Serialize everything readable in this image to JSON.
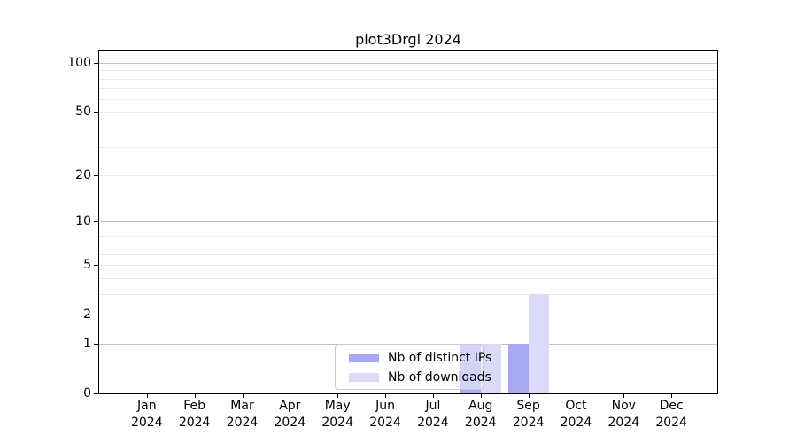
{
  "chart_data": {
    "type": "bar",
    "title": "plot3Drgl 2024",
    "categories": [
      "Jan",
      "Feb",
      "Mar",
      "Apr",
      "May",
      "Jun",
      "Jul",
      "Aug",
      "Sep",
      "Oct",
      "Nov",
      "Dec"
    ],
    "year": "2024",
    "series": [
      {
        "name": "Nb of distinct IPs",
        "color": "#a9a9f2",
        "values": [
          0,
          0,
          0,
          0,
          0,
          0,
          0,
          1,
          1,
          0,
          0,
          0
        ]
      },
      {
        "name": "Nb of downloads",
        "color": "#dbdbf9",
        "values": [
          0,
          0,
          0,
          0,
          0,
          0,
          0,
          1,
          3,
          0,
          0,
          0
        ]
      }
    ],
    "y_scale": "log10(1+x)",
    "y_ticks": [
      0,
      1,
      2,
      5,
      10,
      20,
      50,
      100
    ],
    "grid_major": [
      1,
      10,
      100
    ],
    "grid_minor": [
      2,
      3,
      4,
      5,
      6,
      7,
      8,
      9,
      20,
      30,
      40,
      50,
      60,
      70,
      80,
      90
    ],
    "ylim": [
      0,
      118
    ],
    "grid": "on",
    "legend_position": "bottom-center",
    "colors": {
      "grid_major": "#c2c2c2",
      "grid_minor": "#eaeaea",
      "axis": "#000000",
      "background": "#ffffff"
    }
  }
}
